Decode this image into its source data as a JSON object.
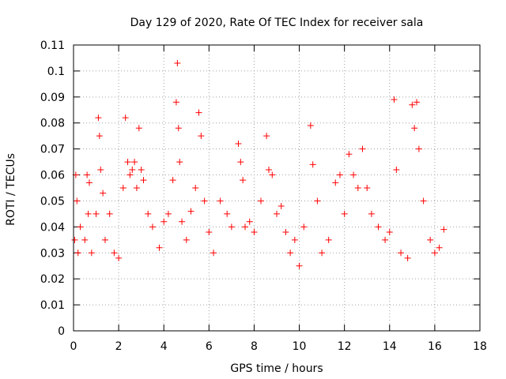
{
  "chart_data": {
    "type": "scatter",
    "title": "Day 129 of 2020, Rate Of TEC Index for receiver sala",
    "xlabel": "GPS time / hours",
    "ylabel": "ROTI / TECUs",
    "xlim": [
      0,
      18
    ],
    "ylim": [
      0,
      0.11
    ],
    "xticks": [
      "0",
      "2",
      "4",
      "6",
      "8",
      "10",
      "12",
      "14",
      "16",
      "18"
    ],
    "yticks": [
      "0",
      "0.01",
      "0.02",
      "0.03",
      "0.04",
      "0.05",
      "0.06",
      "0.07",
      "0.08",
      "0.09",
      "0.1",
      "0.11"
    ],
    "grid": true,
    "marker": "+",
    "color": "#ff0000",
    "series": [
      {
        "x": [
          0.05,
          0.1,
          0.15,
          0.2,
          0.3,
          0.5,
          0.6,
          0.65,
          0.7,
          0.8,
          1.0,
          1.1,
          1.15,
          1.2,
          1.3,
          1.4,
          1.6,
          1.8,
          2.0,
          2.2,
          2.3,
          2.4,
          2.5,
          2.6,
          2.7,
          2.8,
          2.9,
          3.0,
          3.1,
          3.3,
          3.5,
          3.8,
          4.0,
          4.2,
          4.4,
          4.55,
          4.6,
          4.65,
          4.7,
          4.8,
          5.0,
          5.2,
          5.4,
          5.55,
          5.65,
          5.8,
          6.0,
          6.2,
          6.5,
          6.8,
          7.0,
          7.3,
          7.4,
          7.5,
          7.6,
          7.8,
          8.0,
          8.3,
          8.55,
          8.65,
          8.8,
          9.0,
          9.2,
          9.4,
          9.6,
          9.8,
          10.0,
          10.2,
          10.5,
          10.6,
          10.8,
          11.0,
          11.3,
          11.6,
          11.8,
          12.0,
          12.2,
          12.4,
          12.6,
          12.8,
          13.0,
          13.2,
          13.5,
          13.8,
          14.0,
          14.2,
          14.3,
          14.5,
          14.8,
          15.0,
          15.1,
          15.2,
          15.3,
          15.5,
          15.8,
          16.0,
          16.2,
          16.4
        ],
        "y": [
          0.035,
          0.06,
          0.05,
          0.03,
          0.04,
          0.035,
          0.06,
          0.045,
          0.057,
          0.03,
          0.045,
          0.082,
          0.075,
          0.062,
          0.053,
          0.035,
          0.045,
          0.03,
          0.028,
          0.055,
          0.082,
          0.065,
          0.06,
          0.062,
          0.065,
          0.055,
          0.078,
          0.062,
          0.058,
          0.045,
          0.04,
          0.032,
          0.042,
          0.045,
          0.058,
          0.088,
          0.103,
          0.078,
          0.065,
          0.042,
          0.035,
          0.046,
          0.055,
          0.084,
          0.075,
          0.05,
          0.038,
          0.03,
          0.05,
          0.045,
          0.04,
          0.072,
          0.065,
          0.058,
          0.04,
          0.042,
          0.038,
          0.05,
          0.075,
          0.062,
          0.06,
          0.045,
          0.048,
          0.038,
          0.03,
          0.035,
          0.025,
          0.04,
          0.079,
          0.064,
          0.05,
          0.03,
          0.035,
          0.057,
          0.06,
          0.045,
          0.068,
          0.06,
          0.055,
          0.07,
          0.055,
          0.045,
          0.04,
          0.035,
          0.038,
          0.089,
          0.062,
          0.03,
          0.028,
          0.087,
          0.078,
          0.088,
          0.07,
          0.05,
          0.035,
          0.03,
          0.032,
          0.039
        ]
      }
    ]
  }
}
